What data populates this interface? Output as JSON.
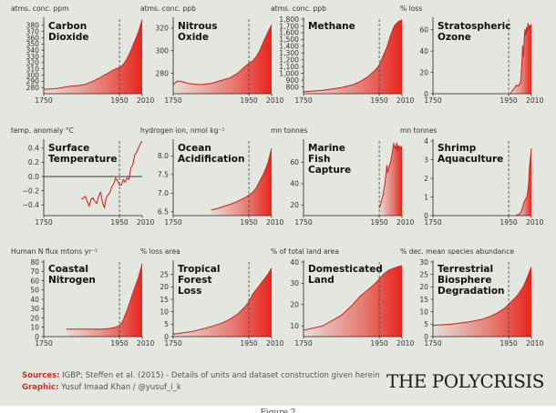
{
  "footer": {
    "sources_label": "Sources:",
    "sources_text": "IGBP; Steffen et al. (2015) - Details of units and dataset construction given herein",
    "graphic_label": "Graphic:",
    "graphic_text": "Yusuf Imaad Khan / @yusuf_i_k",
    "logo": "THE POLYCRISIS",
    "caption": "Figure 2"
  },
  "colors": {
    "background": "#e4e7df",
    "line": "#d42a22",
    "fill_dark": "#e8241c",
    "marker": "#444444"
  },
  "marker_year": 1950,
  "chart_data": [
    {
      "type": "area",
      "title": "Carbon Dioxide",
      "unit": "atms. conc. ppm",
      "ylim": [
        270,
        390
      ],
      "yticks": [
        280,
        290,
        300,
        310,
        320,
        330,
        340,
        350,
        360,
        370,
        380
      ],
      "xlim": [
        1750,
        2010
      ],
      "xticks": [
        1750,
        1950,
        2010
      ],
      "x": [
        1750,
        1780,
        1800,
        1820,
        1840,
        1860,
        1880,
        1900,
        1910,
        1920,
        1930,
        1940,
        1950,
        1960,
        1970,
        1980,
        1990,
        2000,
        2010
      ],
      "y": [
        277,
        278,
        280,
        282,
        283,
        285,
        290,
        296,
        300,
        303,
        307,
        310,
        312,
        317,
        326,
        339,
        354,
        369,
        389
      ]
    },
    {
      "type": "area",
      "title": "Nitrous Oxide",
      "unit": "atms. conc. ppb",
      "ylim": [
        262,
        328
      ],
      "yticks": [
        280,
        300,
        320
      ],
      "xlim": [
        1750,
        2010
      ],
      "xticks": [
        1750,
        1950,
        2010
      ],
      "x": [
        1750,
        1760,
        1770,
        1790,
        1820,
        1850,
        1870,
        1900,
        1920,
        1940,
        1950,
        1960,
        1970,
        1980,
        1990,
        2000,
        2010
      ],
      "y": [
        270,
        273,
        273,
        271,
        270,
        271,
        273,
        276,
        280,
        286,
        289,
        291,
        295,
        301,
        309,
        316,
        323
      ]
    },
    {
      "type": "area",
      "title": "Methane",
      "unit": "atms. conc. ppb",
      "ylim": [
        700,
        1800
      ],
      "yticks": [
        800,
        900,
        1000,
        1100,
        1200,
        1300,
        1400,
        1500,
        1600,
        1700,
        1800
      ],
      "yticklabels": [
        "800",
        "900",
        "1,000",
        "1,100",
        "1,200",
        "1,300",
        "1,400",
        "1,500",
        "1,600",
        "1,700",
        "1,800"
      ],
      "xlim": [
        1750,
        2010
      ],
      "xticks": [
        1750,
        1950,
        2010
      ],
      "x": [
        1750,
        1800,
        1850,
        1880,
        1900,
        1920,
        1940,
        1950,
        1960,
        1970,
        1980,
        1990,
        2000,
        2010
      ],
      "y": [
        730,
        750,
        790,
        830,
        880,
        950,
        1050,
        1120,
        1250,
        1380,
        1560,
        1700,
        1760,
        1790
      ]
    },
    {
      "type": "area",
      "title": "Stratospheric Ozone",
      "unit": "% loss",
      "ylim": [
        0,
        70
      ],
      "yticks": [
        0,
        20,
        40,
        60
      ],
      "xlim": [
        1750,
        2010
      ],
      "xticks": [
        1750,
        1950,
        2010
      ],
      "x": [
        1955,
        1960,
        1965,
        1970,
        1975,
        1980,
        1982,
        1985,
        1987,
        1989,
        1991,
        1993,
        1995,
        1997,
        1999,
        2001,
        2003,
        2005,
        2007,
        2009,
        2010
      ],
      "y": [
        0,
        3,
        5,
        8,
        7,
        10,
        12,
        30,
        45,
        35,
        50,
        60,
        55,
        62,
        58,
        66,
        60,
        64,
        62,
        65,
        62
      ]
    },
    {
      "type": "line",
      "title": "Surface Temperature",
      "unit": "temp. anomaly °C",
      "ylim": [
        -0.55,
        0.5
      ],
      "yticks": [
        -0.4,
        -0.2,
        0.0,
        0.2,
        0.4
      ],
      "yticklabels": [
        "−0.4",
        "−0.2",
        "0.0",
        "0.2",
        "0.4"
      ],
      "zero_line": true,
      "xlim": [
        1750,
        2010
      ],
      "xticks": [
        1750,
        1950,
        2010
      ],
      "x": [
        1850,
        1860,
        1870,
        1875,
        1880,
        1885,
        1890,
        1895,
        1900,
        1905,
        1910,
        1915,
        1920,
        1925,
        1930,
        1935,
        1940,
        1945,
        1950,
        1955,
        1960,
        1965,
        1970,
        1975,
        1980,
        1985,
        1990,
        1995,
        2000,
        2005,
        2010
      ],
      "y": [
        -0.32,
        -0.28,
        -0.42,
        -0.32,
        -0.3,
        -0.35,
        -0.38,
        -0.28,
        -0.22,
        -0.36,
        -0.44,
        -0.3,
        -0.26,
        -0.22,
        -0.14,
        -0.1,
        -0.02,
        -0.06,
        -0.12,
        -0.12,
        -0.04,
        -0.08,
        -0.02,
        -0.04,
        0.12,
        0.16,
        0.3,
        0.34,
        0.4,
        0.46,
        0.5
      ]
    },
    {
      "type": "area",
      "title": "Ocean Acidification",
      "unit": "hydrogen ion, nmol kg⁻¹",
      "ylim": [
        6.4,
        8.4
      ],
      "yticks": [
        6.5,
        7.0,
        7.5,
        8.0
      ],
      "yticklabels": [
        "6.5",
        "7.0",
        "7.5",
        "8.0"
      ],
      "xlim": [
        1750,
        2010
      ],
      "xticks": [
        1750,
        1950,
        2010
      ],
      "x": [
        1850,
        1870,
        1900,
        1920,
        1940,
        1950,
        1960,
        1970,
        1980,
        1990,
        2000,
        2010
      ],
      "y": [
        6.55,
        6.6,
        6.7,
        6.78,
        6.88,
        6.95,
        7.02,
        7.15,
        7.35,
        7.55,
        7.8,
        8.2
      ]
    },
    {
      "type": "area",
      "title": "Marine Fish Capture",
      "unit": "mn tonnes",
      "ylim": [
        10,
        80
      ],
      "yticks": [
        20,
        40,
        60
      ],
      "xlim": [
        1750,
        2010
      ],
      "xticks": [
        1750,
        1950,
        2010
      ],
      "x": [
        1950,
        1953,
        1956,
        1960,
        1965,
        1970,
        1972,
        1975,
        1980,
        1985,
        1988,
        1990,
        1992,
        1994,
        1996,
        1998,
        2000,
        2002,
        2004,
        2006,
        2008,
        2010
      ],
      "y": [
        17,
        20,
        24,
        29,
        40,
        57,
        50,
        55,
        60,
        70,
        78,
        74,
        75,
        72,
        78,
        70,
        76,
        74,
        75,
        72,
        75,
        71
      ]
    },
    {
      "type": "area",
      "title": "Shrimp Aquaculture",
      "unit": "mn tonnes",
      "ylim": [
        0,
        4
      ],
      "yticks": [
        0,
        1,
        2,
        3,
        4
      ],
      "xlim": [
        1750,
        2010
      ],
      "xticks": [
        1750,
        1950,
        2010
      ],
      "x": [
        1970,
        1975,
        1980,
        1985,
        1988,
        1990,
        1995,
        1998,
        2000,
        2003,
        2005,
        2008,
        2010
      ],
      "y": [
        0.03,
        0.05,
        0.1,
        0.3,
        0.55,
        0.7,
        0.9,
        1.0,
        1.2,
        1.8,
        2.6,
        3.2,
        3.6
      ]
    },
    {
      "type": "area",
      "title": "Coastal Nitrogen",
      "unit": "Human N flux mtons yr⁻¹",
      "ylim": [
        0,
        80
      ],
      "yticks": [
        0,
        10,
        20,
        30,
        40,
        50,
        60,
        70,
        80
      ],
      "xlim": [
        1750,
        2010
      ],
      "xticks": [
        1750,
        1950,
        2010
      ],
      "x": [
        1810,
        1850,
        1900,
        1920,
        1940,
        1950,
        1955,
        1960,
        1970,
        1980,
        1990,
        2000,
        2010
      ],
      "y": [
        8,
        8,
        8,
        8.5,
        10,
        12,
        14,
        18,
        28,
        40,
        52,
        63,
        78
      ]
    },
    {
      "type": "area",
      "title": "Tropical Forest Loss",
      "unit": "% loss area",
      "ylim": [
        0,
        30
      ],
      "yticks": [
        0,
        5,
        10,
        15,
        20,
        25
      ],
      "xlim": [
        1750,
        2010
      ],
      "xticks": [
        1750,
        1950,
        2010
      ],
      "x": [
        1750,
        1800,
        1850,
        1880,
        1900,
        1920,
        1940,
        1950,
        1960,
        1970,
        1980,
        1990,
        2000,
        2010
      ],
      "y": [
        1,
        2,
        4,
        5.5,
        7,
        9,
        12,
        14,
        17,
        19,
        21,
        23,
        25,
        27.5
      ]
    },
    {
      "type": "area",
      "title": "Domesticated Land",
      "unit": "% of total land area",
      "ylim": [
        5,
        40
      ],
      "yticks": [
        10,
        20,
        30,
        40
      ],
      "xlim": [
        1750,
        2010
      ],
      "xticks": [
        1750,
        1950,
        2010
      ],
      "x": [
        1750,
        1800,
        1850,
        1880,
        1900,
        1920,
        1940,
        1950,
        1960,
        1970,
        1980,
        1990,
        2000,
        2010
      ],
      "y": [
        8,
        10,
        15,
        20,
        24,
        27,
        30,
        32,
        34,
        35.5,
        36.5,
        37.2,
        37.8,
        38.3
      ]
    },
    {
      "type": "area",
      "title": "Terrestrial Biosphere Degradation",
      "unit": "% dec. mean species abundance",
      "ylim": [
        0,
        30
      ],
      "yticks": [
        0,
        5,
        10,
        15,
        20,
        25,
        30
      ],
      "xlim": [
        1750,
        2010
      ],
      "xticks": [
        1750,
        1950,
        2010
      ],
      "x": [
        1750,
        1800,
        1850,
        1880,
        1900,
        1920,
        1940,
        1950,
        1960,
        1970,
        1980,
        1990,
        2000,
        2010
      ],
      "y": [
        4.5,
        5,
        6,
        7,
        8,
        9.5,
        11.5,
        13,
        14.5,
        16,
        18,
        20.5,
        24,
        28
      ]
    }
  ]
}
